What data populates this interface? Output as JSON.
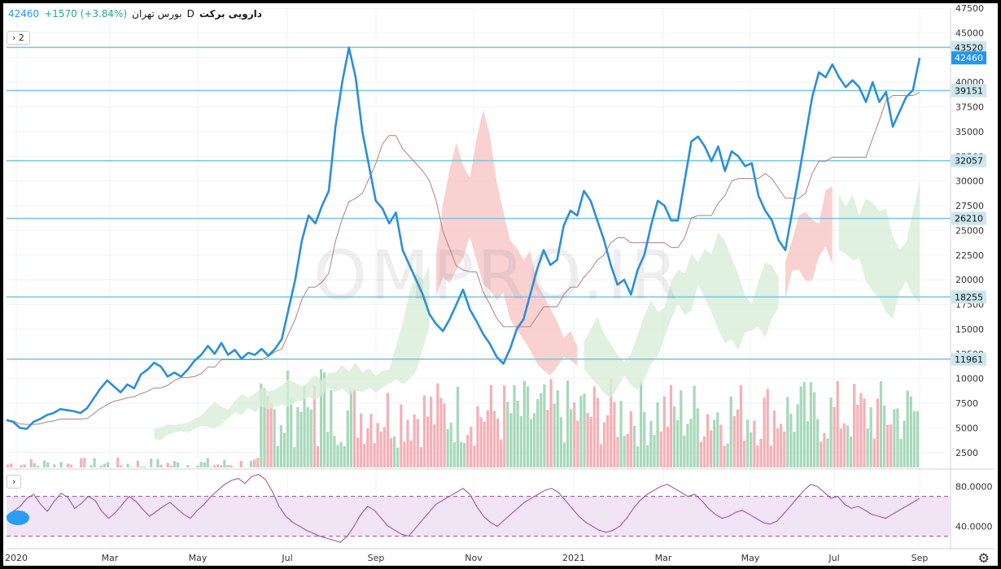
{
  "header": {
    "symbol": "دارویی برکت",
    "timeframe": "D",
    "exchange": "بورس تهران",
    "last_price": "42460",
    "change": "+1570 (+3.84%)"
  },
  "legend_toggle": "› 2",
  "rsi_toggle": "›",
  "watermark": "OMPRO.IR",
  "settings_icon": "gear-icon",
  "colors": {
    "price": "#2b8fd9",
    "baseline": "#b87f7f",
    "cloud_bull": "#d8eed8",
    "cloud_bear": "#f7c5c5",
    "hline": "#80c7dd",
    "rsi": "#9c45a8",
    "rsi_band": "#f1e4f4",
    "vol_up": "#a7d8b9",
    "vol_down": "#f4b0b6"
  },
  "chart_data": [
    {
      "type": "line",
      "panel": "price",
      "x_labels": [
        "2020",
        "Mar",
        "May",
        "Jul",
        "Sep",
        "Nov",
        "2021",
        "Mar",
        "May",
        "Jul",
        "Sep"
      ],
      "y_ticks": [
        2500,
        5000,
        7500,
        10000,
        12500,
        15000,
        17500,
        20000,
        22500,
        25000,
        27500,
        30000,
        32500,
        35000,
        37500,
        40000,
        42500,
        45000,
        47500
      ],
      "ylim": [
        1000,
        47500
      ],
      "horizontal_levels": [
        43520,
        39151,
        32057,
        26210,
        18255,
        11961
      ],
      "last_price": 42460,
      "series": [
        {
          "values": [
            5800,
            5600,
            5000,
            4900,
            5600,
            5900,
            6300,
            6500,
            6900,
            6800,
            6700,
            6500,
            7000,
            8000,
            9000,
            9800,
            9200,
            8600,
            9400,
            9000,
            10400,
            10900,
            11600,
            11200,
            10200,
            10600,
            10200,
            10900,
            11800,
            12400,
            13300,
            12500,
            13600,
            12400,
            12900,
            12000,
            12600,
            12400,
            13000,
            12300,
            13000,
            14000,
            17000,
            20000,
            24000,
            26500,
            25700,
            27500,
            29000,
            35500,
            40000,
            43500,
            40500,
            35000,
            31500,
            28000,
            27200,
            25700,
            26800,
            23000,
            21500,
            20000,
            18500,
            16500,
            15500,
            14800,
            16000,
            17500,
            19000,
            17000,
            15800,
            14500,
            13500,
            12200,
            11500,
            13000,
            15000,
            16000,
            18500,
            21000,
            23000,
            21500,
            22000,
            25500,
            27000,
            26500,
            29000,
            28000,
            26000,
            24000,
            21500,
            19500,
            20000,
            18500,
            21000,
            22500,
            25500,
            28000,
            27500,
            26000,
            26000,
            30000,
            34000,
            34500,
            33500,
            32000,
            33500,
            31000,
            33000,
            32500,
            31500,
            31800,
            28500,
            27000,
            26000,
            24000,
            23000,
            26800,
            30500,
            34500,
            38500,
            41000,
            40500,
            41800,
            40500,
            39500,
            40200,
            39500,
            38000,
            40000,
            38000,
            39000,
            35500,
            37000,
            38500,
            39200,
            42460
          ]
        }
      ]
    },
    {
      "type": "bar",
      "panel": "volume",
      "note": "volume bars (unlabeled axis, shares price panel scale)",
      "ylim": [
        0,
        12000
      ]
    },
    {
      "type": "line",
      "panel": "rsi",
      "y_ticks": [
        "80.0000",
        "40.0000"
      ],
      "ylim": [
        20,
        95
      ],
      "bands": [
        30,
        70
      ],
      "series": [
        {
          "values": [
            50,
            55,
            60,
            68,
            72,
            62,
            55,
            65,
            73,
            69,
            58,
            63,
            70,
            66,
            55,
            48,
            54,
            62,
            70,
            65,
            57,
            50,
            55,
            60,
            64,
            58,
            52,
            48,
            56,
            62,
            70,
            76,
            82,
            86,
            88,
            83,
            90,
            92,
            87,
            75,
            60,
            50,
            44,
            40,
            36,
            33,
            30,
            28,
            26,
            24,
            30,
            40,
            52,
            60,
            56,
            48,
            40,
            36,
            32,
            30,
            38,
            46,
            54,
            62,
            66,
            70,
            74,
            78,
            72,
            60,
            50,
            44,
            40,
            46,
            52,
            58,
            64,
            68,
            72,
            76,
            78,
            74,
            66,
            58,
            50,
            44,
            40,
            36,
            34,
            36,
            40,
            48,
            58,
            66,
            72,
            76,
            80,
            82,
            78,
            74,
            70,
            72,
            66,
            58,
            52,
            48,
            50,
            54,
            56,
            52,
            48,
            44,
            42,
            45,
            52,
            60,
            68,
            76,
            82,
            80,
            74,
            68,
            70,
            62,
            58,
            60,
            56,
            52,
            50,
            48,
            52,
            56,
            60,
            64,
            68
          ]
        }
      ]
    }
  ]
}
